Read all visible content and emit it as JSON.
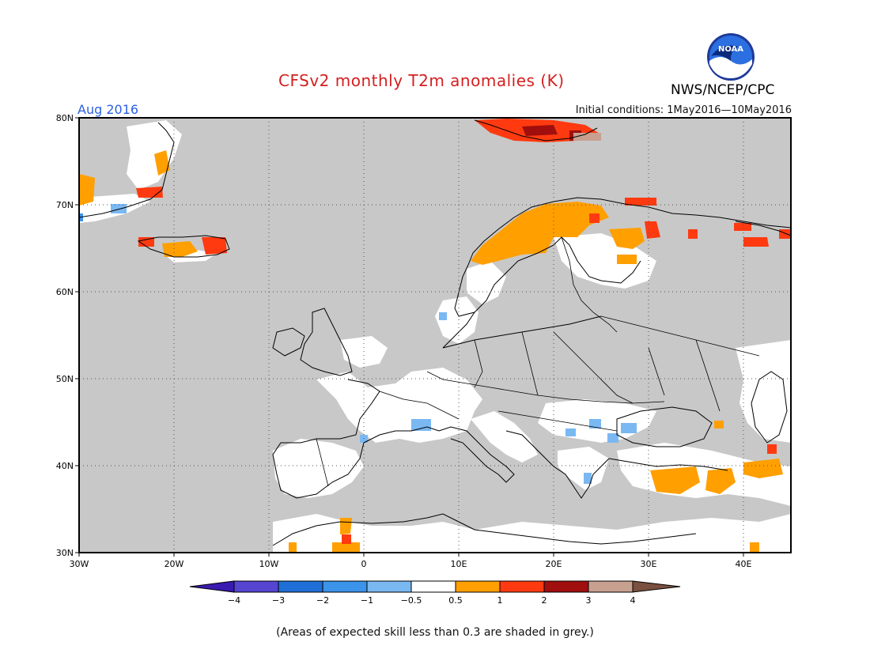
{
  "header": {
    "title": "CFSv2 monthly T2m anomalies (K)",
    "period": "Aug 2016",
    "initial_conditions": "Initial conditions: 1May2016—10May2016",
    "agency": "NWS/NCEP/CPC",
    "logo_text": "NOAA"
  },
  "map": {
    "lat_labels": [
      "80N",
      "70N",
      "60N",
      "50N",
      "40N",
      "30N"
    ],
    "lon_labels": [
      "30W",
      "20W",
      "10W",
      "0",
      "10E",
      "20E",
      "30E",
      "40E"
    ],
    "extent": {
      "lon": [
        -30,
        45
      ],
      "lat": [
        30,
        80
      ]
    },
    "grid": "dotted",
    "ocean_color": "#c8c8c8",
    "no_skill_color": "#c8c8c8"
  },
  "colorbar": {
    "ticks": [
      "−4",
      "−3",
      "−2",
      "−1",
      "−0.5",
      "0.5",
      "1",
      "2",
      "3",
      "4"
    ],
    "colors": [
      "#3a1ab0",
      "#5545d0",
      "#1f6fd6",
      "#3b93ea",
      "#7ab8f2",
      "#ffffff",
      "#ff9f00",
      "#ff3a10",
      "#a00e0e",
      "#c8a090",
      "#7a5040"
    ]
  },
  "footnote": "(Areas of expected skill less than 0.3 are shaded in grey.)"
}
